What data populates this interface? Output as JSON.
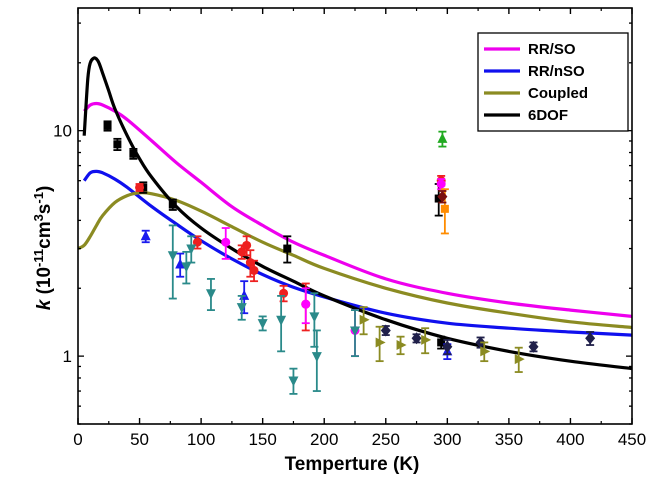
{
  "chart_data": {
    "type": "line",
    "xlabel": "Temperture (K)",
    "ylabel_parts": {
      "k": "k",
      "open": " (10",
      "exp1": "-11",
      "mid": "cm",
      "exp2": "3",
      "s": "s",
      "exp3": "-1",
      "close": ")"
    },
    "xlim": [
      0,
      450
    ],
    "ylim": [
      0.5,
      35
    ],
    "yscale": "log",
    "x_ticks": [
      "0",
      "50",
      "100",
      "150",
      "200",
      "250",
      "300",
      "350",
      "400",
      "450"
    ],
    "y_ticks": [
      "1",
      "10"
    ],
    "legend_position": "top-right",
    "series": [
      {
        "name": "RR/SO",
        "color": "#ee00ee",
        "x": [
          5,
          10,
          15,
          20,
          30,
          40,
          60,
          80,
          100,
          125,
          150,
          175,
          200,
          250,
          300,
          350,
          400,
          450
        ],
        "y": [
          12.2,
          13.0,
          13.2,
          13.0,
          12.2,
          11.2,
          9.0,
          7.2,
          5.9,
          4.6,
          3.8,
          3.2,
          2.8,
          2.2,
          1.9,
          1.72,
          1.6,
          1.5
        ]
      },
      {
        "name": "RR/nSO",
        "color": "#1010ee",
        "x": [
          5,
          10,
          15,
          20,
          30,
          40,
          60,
          80,
          100,
          125,
          150,
          175,
          200,
          250,
          300,
          350,
          400,
          450
        ],
        "y": [
          6.0,
          6.5,
          6.6,
          6.5,
          6.1,
          5.6,
          4.6,
          3.85,
          3.25,
          2.7,
          2.3,
          2.02,
          1.83,
          1.55,
          1.4,
          1.33,
          1.28,
          1.24
        ]
      },
      {
        "name": "Coupled",
        "color": "#8b8b22",
        "x": [
          0,
          5,
          10,
          15,
          20,
          30,
          40,
          50,
          60,
          80,
          100,
          125,
          150,
          175,
          200,
          250,
          300,
          350,
          400,
          450
        ],
        "y": [
          3.0,
          3.1,
          3.4,
          3.8,
          4.2,
          4.8,
          5.15,
          5.3,
          5.25,
          4.9,
          4.4,
          3.75,
          3.2,
          2.8,
          2.45,
          2.0,
          1.72,
          1.55,
          1.42,
          1.34
        ]
      },
      {
        "name": "6DOF",
        "color": "#000000",
        "x": [
          5,
          8,
          10,
          13,
          15,
          17,
          20,
          25,
          30,
          40,
          50,
          60,
          80,
          100,
          125,
          150,
          175,
          200,
          250,
          300,
          350,
          400,
          450
        ],
        "y": [
          9.5,
          17.0,
          20.0,
          21.0,
          20.8,
          20.0,
          18.0,
          15.0,
          12.5,
          9.5,
          7.5,
          6.2,
          4.6,
          3.7,
          3.0,
          2.5,
          2.15,
          1.85,
          1.45,
          1.2,
          1.05,
          0.95,
          0.88
        ]
      }
    ],
    "points": [
      {
        "color": "#000000",
        "marker": "square",
        "data": [
          [
            24,
            10.5,
            0.5
          ],
          [
            32,
            8.7,
            0.5
          ],
          [
            45,
            7.9,
            0.4
          ],
          [
            53,
            5.6,
            0.3
          ],
          [
            77,
            4.7,
            0.25
          ],
          [
            170,
            3.0,
            0.4
          ],
          [
            293,
            5.0,
            0.8
          ],
          [
            295,
            1.15,
            0.07
          ]
        ]
      },
      {
        "color": "#ee2020",
        "marker": "circle",
        "data": [
          [
            50,
            5.6,
            0.2
          ],
          [
            97,
            3.2,
            0.2
          ],
          [
            133,
            2.9,
            0.2
          ],
          [
            137,
            3.1,
            0.3
          ],
          [
            140,
            2.6,
            0.35
          ],
          [
            143,
            2.4,
            0.25
          ],
          [
            167,
            1.9,
            0.15
          ],
          [
            185,
            1.7,
            0.4
          ],
          [
            295,
            6.0,
            0.3
          ]
        ]
      },
      {
        "color": "#ff00ff",
        "marker": "circle",
        "data": [
          [
            120,
            3.2,
            0.5
          ],
          [
            185,
            1.7,
            0.3
          ],
          [
            225,
            1.3,
            0.3
          ],
          [
            295,
            5.8,
            0.3
          ]
        ]
      },
      {
        "color": "#1a1aee",
        "marker": "triangle-up",
        "data": [
          [
            55,
            3.4,
            0.2
          ],
          [
            83,
            2.55,
            0.3
          ],
          [
            135,
            1.85,
            0.3
          ],
          [
            300,
            1.05,
            0.08
          ]
        ]
      },
      {
        "color": "#22aa22",
        "marker": "triangle-up",
        "data": [
          [
            296,
            9.2,
            0.7
          ]
        ]
      },
      {
        "color": "#2a8a8a",
        "marker": "triangle-down",
        "data": [
          [
            77,
            2.8,
            1.0
          ],
          [
            88,
            2.5,
            0.4
          ],
          [
            92,
            3.0,
            0.4
          ],
          [
            108,
            1.9,
            0.3
          ],
          [
            133,
            1.65,
            0.2
          ],
          [
            150,
            1.4,
            0.1
          ],
          [
            165,
            1.45,
            0.4
          ],
          [
            175,
            0.78,
            0.1
          ],
          [
            192,
            1.5,
            0.4
          ],
          [
            194,
            1.0,
            0.3
          ],
          [
            225,
            1.3,
            0.3
          ]
        ]
      },
      {
        "color": "#20204a",
        "marker": "diamond",
        "data": [
          [
            250,
            1.3,
            0.06
          ],
          [
            275,
            1.2,
            0.05
          ],
          [
            300,
            1.1,
            0.08
          ],
          [
            327,
            1.15,
            0.06
          ],
          [
            370,
            1.1,
            0.05
          ],
          [
            416,
            1.2,
            0.08
          ]
        ]
      },
      {
        "color": "#8b8b22",
        "marker": "triangle-right",
        "data": [
          [
            232,
            1.45,
            0.2
          ],
          [
            245,
            1.15,
            0.2
          ],
          [
            262,
            1.12,
            0.1
          ],
          [
            282,
            1.18,
            0.15
          ],
          [
            330,
            1.05,
            0.1
          ],
          [
            358,
            0.97,
            0.12
          ]
        ]
      },
      {
        "color": "#ff8c00",
        "marker": "square",
        "data": [
          [
            298,
            4.5,
            1.0
          ]
        ]
      },
      {
        "color": "#7b0f0f",
        "marker": "diamond",
        "data": [
          [
            296,
            5.1,
            0.3
          ]
        ]
      }
    ]
  }
}
